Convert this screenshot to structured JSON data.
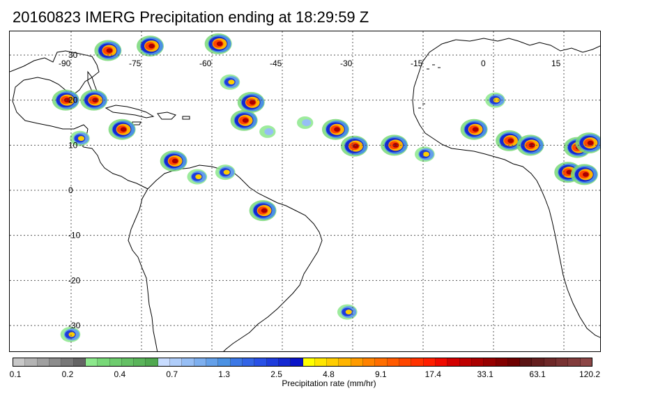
{
  "title": "20160823 IMERG Precipitation ending at 18:29:59 Z",
  "map": {
    "lon_labels": [
      "-90",
      "-75",
      "-60",
      "-45",
      "-30",
      "-15",
      "0",
      "15"
    ],
    "lat_labels": [
      "30",
      "20",
      "10",
      "0",
      "-10",
      "-20",
      "-30"
    ],
    "grid": true,
    "grid_style": "dotted"
  },
  "colorbar": {
    "label": "Precipitation rate (mm/hr)",
    "ticks": [
      "0.1",
      "0.2",
      "0.4",
      "0.7",
      "1.3",
      "2.5",
      "4.8",
      "9.1",
      "17.4",
      "33.1",
      "63.1",
      "120.2"
    ],
    "colors": [
      "#c8c8c8",
      "#b4b4b4",
      "#a0a0a0",
      "#8c8c8c",
      "#787878",
      "#646464",
      "#8ce88c",
      "#78d878",
      "#6ecc6e",
      "#64c064",
      "#5ab45a",
      "#50a850",
      "#c8dcff",
      "#afcdfa",
      "#96bef5",
      "#7dafef",
      "#64a0e9",
      "#4b91e3",
      "#3c78e6",
      "#3264e6",
      "#2850e6",
      "#1e3cdc",
      "#1428d2",
      "#0a14c8",
      "#ffff00",
      "#ffe600",
      "#ffcd00",
      "#ffb400",
      "#ff9b00",
      "#ff8200",
      "#ff6e00",
      "#ff5a00",
      "#ff4600",
      "#ff3200",
      "#ff1e00",
      "#f00a00",
      "#d20000",
      "#be0000",
      "#aa0000",
      "#960000",
      "#820000",
      "#6e0000",
      "#5a1414",
      "#641e1e",
      "#6e2828",
      "#783232",
      "#823c3c",
      "#8c4646"
    ]
  },
  "precip_cells": [
    {
      "lon": -51.5,
      "lat": 19.5,
      "level": "heavy"
    },
    {
      "lon": -53.0,
      "lat": 15.5,
      "level": "heavy"
    },
    {
      "lon": -33.5,
      "lat": 13.5,
      "level": "heavy"
    },
    {
      "lon": -29.5,
      "lat": 9.8,
      "level": "heavy"
    },
    {
      "lon": -85.0,
      "lat": 20.0,
      "level": "heavy"
    },
    {
      "lon": -79.0,
      "lat": 13.5,
      "level": "heavy"
    },
    {
      "lon": -88.0,
      "lat": 11.5,
      "level": "moderate"
    },
    {
      "lon": -68.0,
      "lat": 6.5,
      "level": "heavy"
    },
    {
      "lon": -63.0,
      "lat": 3.0,
      "level": "moderate"
    },
    {
      "lon": -57.0,
      "lat": 4.0,
      "level": "moderate"
    },
    {
      "lon": -49.0,
      "lat": -4.5,
      "level": "heavy"
    },
    {
      "lon": -21.0,
      "lat": 10.0,
      "level": "heavy"
    },
    {
      "lon": -14.5,
      "lat": 8.0,
      "level": "moderate"
    },
    {
      "lon": -4.0,
      "lat": 13.5,
      "level": "heavy"
    },
    {
      "lon": 3.5,
      "lat": 11.0,
      "level": "heavy"
    },
    {
      "lon": 8.0,
      "lat": 10.0,
      "level": "heavy"
    },
    {
      "lon": 18.0,
      "lat": 9.5,
      "level": "heavy"
    },
    {
      "lon": 20.5,
      "lat": 10.5,
      "level": "heavy"
    },
    {
      "lon": 16.0,
      "lat": 4.0,
      "level": "heavy"
    },
    {
      "lon": 19.5,
      "lat": 3.5,
      "level": "heavy"
    },
    {
      "lon": 0.5,
      "lat": 20.0,
      "level": "moderate"
    },
    {
      "lon": -58.5,
      "lat": 32.5,
      "level": "heavy"
    },
    {
      "lon": -73.0,
      "lat": 32.0,
      "level": "heavy"
    },
    {
      "lon": -82.0,
      "lat": 31.0,
      "level": "heavy"
    },
    {
      "lon": -91.0,
      "lat": 20.0,
      "level": "heavy"
    },
    {
      "lon": -31.0,
      "lat": -27.0,
      "level": "moderate"
    },
    {
      "lon": -90.0,
      "lat": -32.0,
      "level": "moderate"
    },
    {
      "lon": -56.0,
      "lat": 24.0,
      "level": "moderate"
    },
    {
      "lon": -48.0,
      "lat": 13.0,
      "level": "light"
    },
    {
      "lon": -40.0,
      "lat": 15.0,
      "level": "light"
    }
  ]
}
